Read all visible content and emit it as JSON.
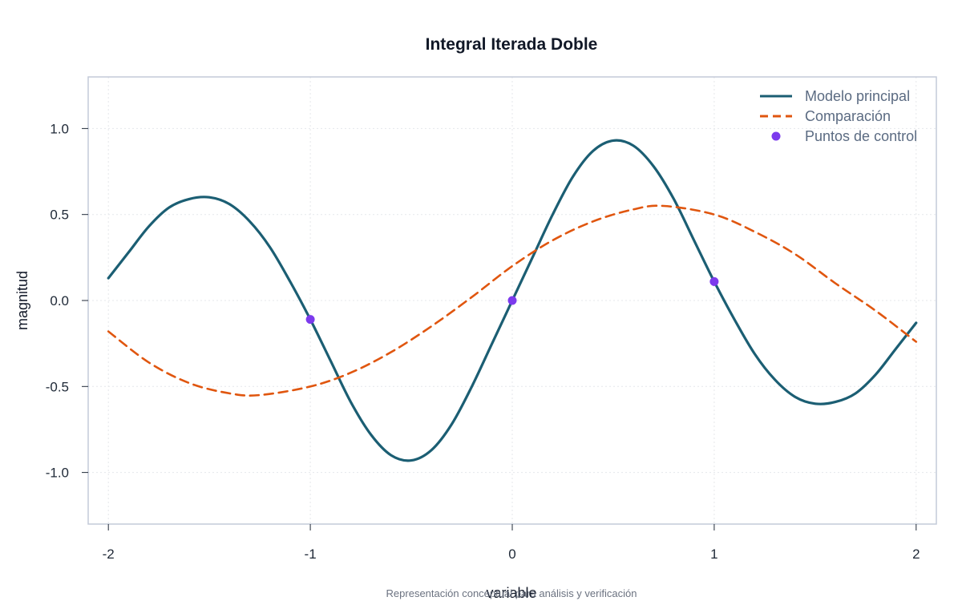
{
  "chart_data": {
    "type": "line",
    "title": "Integral Iterada Doble",
    "xlabel": "variable",
    "ylabel": "magnitud",
    "caption": "Representación conceptual para análisis y verificación",
    "xlim": [
      -2.1,
      2.1
    ],
    "ylim": [
      -1.3,
      1.3
    ],
    "xticks": [
      -2,
      -1,
      0,
      1,
      2
    ],
    "xtick_labels": [
      "-2",
      "-1",
      "0",
      "1",
      "2"
    ],
    "yticks": [
      -1.0,
      -0.5,
      0.0,
      0.5,
      1.0
    ],
    "ytick_labels": [
      "-1.0",
      "-0.5",
      "0.0",
      "0.5",
      "1.0"
    ],
    "grid": true,
    "legend_position": "top-right",
    "series": [
      {
        "name": "Modelo principal",
        "style": "solid",
        "color": "#1b5e73",
        "x": [
          -2.0,
          -1.9,
          -1.8,
          -1.7,
          -1.6,
          -1.5,
          -1.4,
          -1.3,
          -1.2,
          -1.1,
          -1.0,
          -0.9,
          -0.8,
          -0.7,
          -0.6,
          -0.5,
          -0.4,
          -0.3,
          -0.2,
          -0.1,
          0.0,
          0.1,
          0.2,
          0.3,
          0.4,
          0.5,
          0.6,
          0.7,
          0.8,
          0.9,
          1.0,
          1.1,
          1.2,
          1.3,
          1.4,
          1.5,
          1.6,
          1.7,
          1.8,
          1.9,
          2.0
        ],
        "y": [
          0.13,
          0.28,
          0.43,
          0.54,
          0.59,
          0.6,
          0.56,
          0.46,
          0.31,
          0.11,
          -0.11,
          -0.35,
          -0.59,
          -0.78,
          -0.9,
          -0.93,
          -0.87,
          -0.72,
          -0.5,
          -0.25,
          0.0,
          0.25,
          0.5,
          0.72,
          0.87,
          0.93,
          0.9,
          0.78,
          0.59,
          0.35,
          0.11,
          -0.11,
          -0.31,
          -0.46,
          -0.56,
          -0.6,
          -0.59,
          -0.54,
          -0.43,
          -0.28,
          -0.13
        ]
      },
      {
        "name": "Comparación",
        "style": "dashed",
        "color": "#e0560f",
        "x": [
          -2.0,
          -1.8,
          -1.6,
          -1.4,
          -1.25,
          -1.0,
          -0.8,
          -0.6,
          -0.4,
          -0.2,
          0.0,
          0.2,
          0.4,
          0.6,
          0.75,
          1.0,
          1.2,
          1.4,
          1.6,
          1.8,
          2.0
        ],
        "y": [
          -0.18,
          -0.36,
          -0.48,
          -0.54,
          -0.55,
          -0.5,
          -0.42,
          -0.3,
          -0.15,
          0.02,
          0.2,
          0.35,
          0.46,
          0.53,
          0.55,
          0.5,
          0.4,
          0.27,
          0.1,
          -0.06,
          -0.24
        ]
      },
      {
        "name": "Puntos de control",
        "style": "points",
        "color": "#7c3aed",
        "x": [
          -1,
          0,
          1
        ],
        "y": [
          -0.11,
          0.0,
          0.11
        ]
      }
    ]
  }
}
